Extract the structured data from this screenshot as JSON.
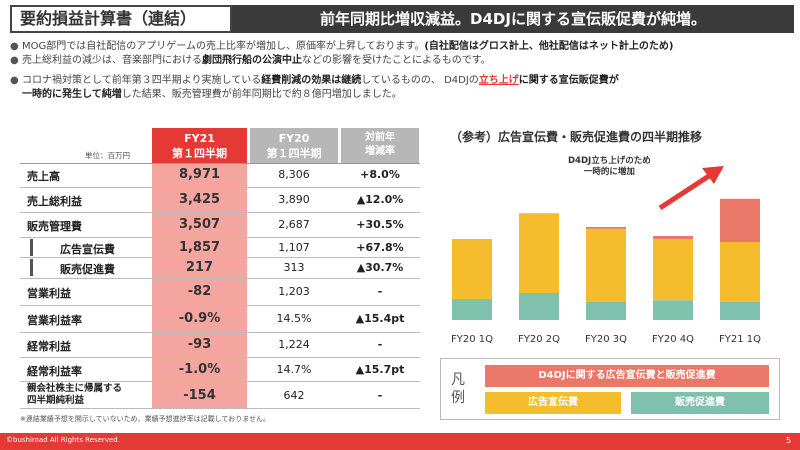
{
  "header": {
    "title": "要約損益計算書（連結）",
    "banner": "前年同期比増収減益。D4DJに関する宣伝販促費が純増。"
  },
  "bullets": {
    "b1_pre": "MOG部門では自社配信のアプリゲームの売上比率が増加し、原価率が上昇しております。",
    "b1_bold": "(自社配信はグロス計上、他社配信はネット計上のため)",
    "b2_pre": "売上総利益の減少は、音楽部門における",
    "b2_bold": "劇団飛行船の公演中止",
    "b2_post": "などの影響を受けたことによるものです。",
    "b3_pre": "コロナ禍対策として前年第３四半期より実施している",
    "b3_bold": "経費削減の効果は継続",
    "b3_mid": "しているものの、 D4DJの",
    "b3_red": "立ち上げ",
    "b3_post": "に関する宣伝販促費が",
    "b4_bold": "一時的に発生して純増",
    "b4_post": "した結果、販売管理費が前年同期比で約８億円増加しました。"
  },
  "table": {
    "unit": "単位：百万円",
    "col_fy21_l1": "FY21",
    "col_fy21_l2": "第１四半期",
    "col_fy20_l1": "FY20",
    "col_fy20_l2": "第１四半期",
    "col_chg_l1": "対前年",
    "col_chg_l2": "増減率",
    "rows": [
      {
        "label": "売上高",
        "fy21": "8,971",
        "fy20": "8,306",
        "chg": "+8.0%"
      },
      {
        "label": "売上総利益",
        "fy21": "3,425",
        "fy20": "3,890",
        "chg": "▲12.0%"
      },
      {
        "label": "販売管理費",
        "fy21": "3,507",
        "fy20": "2,687",
        "chg": "+30.5%"
      },
      {
        "label": "広告宣伝費",
        "fy21": "1,857",
        "fy20": "1,107",
        "chg": "+67.8%"
      },
      {
        "label": "販売促進費",
        "fy21": "217",
        "fy20": "313",
        "chg": "▲30.7%"
      },
      {
        "label": "営業利益",
        "fy21": "-82",
        "fy20": "1,203",
        "chg": "-"
      },
      {
        "label": "営業利益率",
        "fy21": "-0.9%",
        "fy20": "14.5%",
        "chg": "▲15.4pt"
      },
      {
        "label": "経常利益",
        "fy21": "-93",
        "fy20": "1,224",
        "chg": "-"
      },
      {
        "label": "経常利益率",
        "fy21": "-1.0%",
        "fy20": "14.7%",
        "chg": "▲15.7pt"
      },
      {
        "label_l1": "親会社株主に帰属する",
        "label_l2": "四半期純利益",
        "fy21": "-154",
        "fy20": "642",
        "chg": "-"
      }
    ],
    "note": "※連結業績予想を開示していないため、業績予想進捗率は記載しておりません。"
  },
  "chart_data": {
    "type": "bar",
    "title": "（参考）広告宣伝費・販売促進費の四半期推移",
    "categories": [
      "FY20 1Q",
      "FY20 2Q",
      "FY20 3Q",
      "FY20 4Q",
      "FY21 1Q"
    ],
    "series": [
      {
        "name": "販売促進費",
        "color": "#7fc1ad",
        "values": [
          35,
          45,
          30,
          33,
          30
        ]
      },
      {
        "name": "広告宣伝費",
        "color": "#f5bd2e",
        "values": [
          100,
          133,
          122,
          102,
          100
        ]
      },
      {
        "name": "D4DJに関する広告宣伝費と販売促進費",
        "color": "#ea7768",
        "values": [
          0,
          0,
          3,
          5,
          72
        ]
      }
    ],
    "annotation_l1": "D4DJ立ち上げのため",
    "annotation_l2": "一時的に増加",
    "legend_title_l1": "凡",
    "legend_title_l2": "例"
  },
  "footer": {
    "copyright": "©bushiroad All Rights Reserved.",
    "page": "5"
  }
}
